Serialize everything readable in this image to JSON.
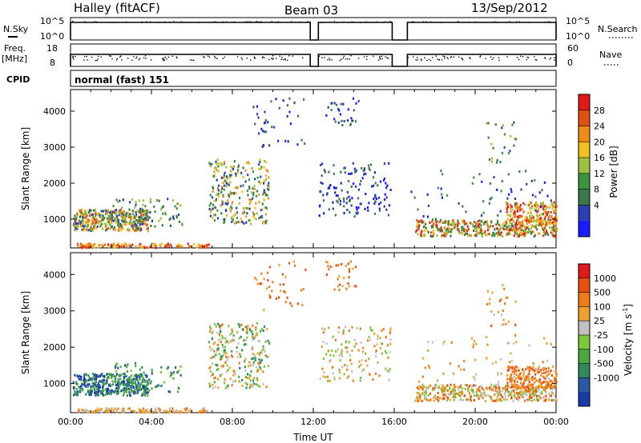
{
  "header": {
    "station": "Halley (fitACF)",
    "beam": "Beam 03",
    "date": "13/Sep/2012"
  },
  "strips": {
    "nsky": {
      "left_label": "N.Sky",
      "right_label": "N.Search",
      "left_ticks": [
        "10^5",
        "10^0"
      ],
      "right_ticks": [
        "10^5",
        "10^0"
      ]
    },
    "freq": {
      "left_label_top": "Freq.",
      "left_label_unit": "[MHz]",
      "left_ticks": [
        "18",
        "8"
      ],
      "right_label": "Nave",
      "right_ticks": [
        "60",
        "0"
      ]
    },
    "cpid": {
      "label": "CPID",
      "value": "normal (fast) 151"
    }
  },
  "chart_data": [
    {
      "type": "heatmap",
      "panel": "power",
      "ylabel": "Slant Range [km]",
      "y_ticks": [
        1000,
        2000,
        3000,
        4000
      ],
      "ylim": [
        200,
        4600
      ],
      "x_ticks": [
        "00:00",
        "04:00",
        "08:00",
        "12:00",
        "16:00",
        "20:00",
        "00:00"
      ],
      "xlim_hours": [
        0,
        24
      ],
      "colorbar": {
        "label": "Power [dB]",
        "ticks": [
          "28",
          "24",
          "20",
          "16",
          "12",
          "8",
          "4"
        ],
        "colors": [
          "#1a1aff",
          "#2a3fb0",
          "#3a7a4a",
          "#3d9440",
          "#9ec040",
          "#f0c020",
          "#f08a1a",
          "#e05010",
          "#e01a1a"
        ]
      }
    },
    {
      "type": "heatmap",
      "panel": "velocity",
      "ylabel": "Slant Range [km]",
      "y_ticks": [
        1000,
        2000,
        3000,
        4000
      ],
      "ylim": [
        200,
        4600
      ],
      "x_ticks": [
        "00:00",
        "04:00",
        "08:00",
        "12:00",
        "16:00",
        "20:00",
        "00:00"
      ],
      "xlabel": "Time UT",
      "colorbar": {
        "label": "Velocity [m s",
        "label_sup": "-1",
        "label_end": "]",
        "ticks": [
          "1000",
          "500",
          "100",
          "25",
          "-25",
          "-100",
          "-500",
          "-1000"
        ],
        "colors": [
          "#1a3aa8",
          "#2a5aa0",
          "#2e8a5a",
          "#4aa840",
          "#7cc83a",
          "#c0c0c0",
          "#f0a030",
          "#f07a18",
          "#e85010",
          "#e01a1a"
        ]
      }
    }
  ]
}
